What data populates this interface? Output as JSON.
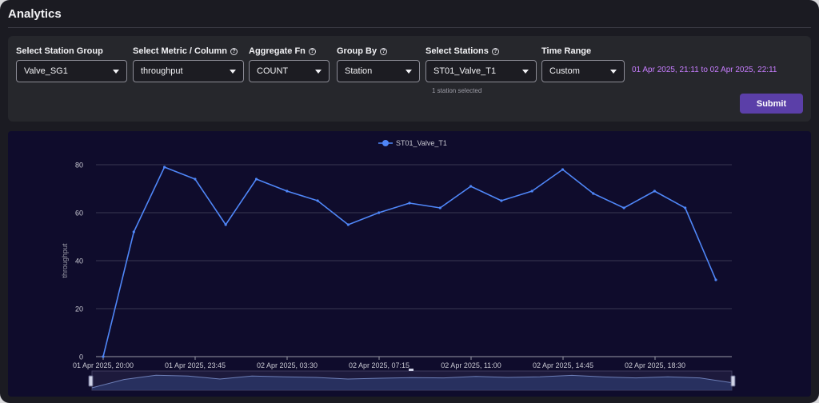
{
  "page": {
    "title": "Analytics"
  },
  "filters": {
    "station_group": {
      "label": "Select Station Group",
      "value": "Valve_SG1"
    },
    "metric": {
      "label": "Select Metric / Column",
      "value": "throughput"
    },
    "aggregate": {
      "label": "Aggregate Fn",
      "value": "COUNT"
    },
    "group_by": {
      "label": "Group By",
      "value": "Station"
    },
    "stations": {
      "label": "Select Stations",
      "value": "ST01_Valve_T1",
      "hint": "1 station selected"
    },
    "time_range": {
      "label": "Time Range",
      "value": "Custom",
      "range_text": "01 Apr 2025, 21:11 to 02 Apr 2025, 22:11"
    },
    "submit_label": "Submit",
    "help_glyph": "?"
  },
  "colors": {
    "line": "#4f86f7",
    "accent": "#5b3fa8",
    "range_text": "#c77dff"
  },
  "chart_data": {
    "type": "line",
    "ylabel": "throughput",
    "xlabel": "",
    "ylim": [
      0,
      80
    ],
    "y_ticks": [
      0,
      20,
      40,
      60,
      80
    ],
    "x_tick_labels": [
      "01 Apr 2025, 20:00",
      "01 Apr 2025, 23:45",
      "02 Apr 2025, 03:30",
      "02 Apr 2025, 07:15",
      "02 Apr 2025, 11:00",
      "02 Apr 2025, 14:45",
      "02 Apr 2025, 18:30"
    ],
    "legend": "top-center",
    "grid": true,
    "series": [
      {
        "name": "ST01_Valve_T1",
        "values": [
          0,
          52,
          79,
          74,
          55,
          74,
          69,
          65,
          55,
          60,
          64,
          62,
          71,
          65,
          69,
          78,
          68,
          62,
          69,
          62,
          32
        ]
      }
    ]
  }
}
